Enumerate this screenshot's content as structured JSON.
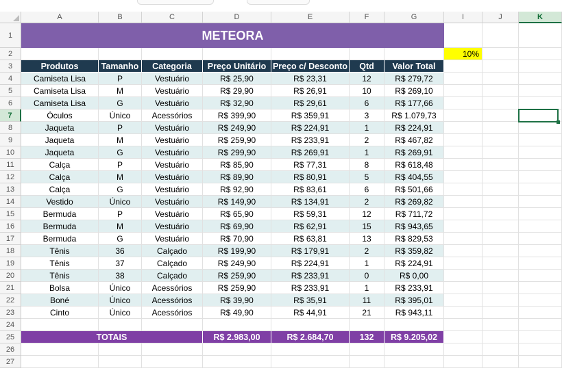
{
  "sheet": {
    "columns": [
      "A",
      "B",
      "C",
      "D",
      "E",
      "F",
      "G",
      "I",
      "J",
      "K"
    ],
    "selected_column": "K",
    "selected_row": "7",
    "title": "METEORA",
    "discount": "10%",
    "headers": [
      "Produtos",
      "Tamanho",
      "Categoria",
      "Preço Unitário",
      "Preço c/ Desconto",
      "Qtd",
      "Valor Total"
    ],
    "rows": [
      [
        "Camiseta Lisa",
        "P",
        "Vestuário",
        "R$ 25,90",
        "R$ 23,31",
        "12",
        "R$ 279,72"
      ],
      [
        "Camiseta Lisa",
        "M",
        "Vestuário",
        "R$ 29,90",
        "R$ 26,91",
        "10",
        "R$ 269,10"
      ],
      [
        "Camiseta Lisa",
        "G",
        "Vestuário",
        "R$ 32,90",
        "R$ 29,61",
        "6",
        "R$ 177,66"
      ],
      [
        "Óculos",
        "Único",
        "Acessórios",
        "R$ 399,90",
        "R$ 359,91",
        "3",
        "R$ 1.079,73"
      ],
      [
        "Jaqueta",
        "P",
        "Vestuário",
        "R$ 249,90",
        "R$ 224,91",
        "1",
        "R$ 224,91"
      ],
      [
        "Jaqueta",
        "M",
        "Vestuário",
        "R$ 259,90",
        "R$ 233,91",
        "2",
        "R$ 467,82"
      ],
      [
        "Jaqueta",
        "G",
        "Vestuário",
        "R$ 299,90",
        "R$ 269,91",
        "1",
        "R$ 269,91"
      ],
      [
        "Calça",
        "P",
        "Vestuário",
        "R$ 85,90",
        "R$ 77,31",
        "8",
        "R$ 618,48"
      ],
      [
        "Calça",
        "M",
        "Vestuário",
        "R$ 89,90",
        "R$ 80,91",
        "5",
        "R$ 404,55"
      ],
      [
        "Calça",
        "G",
        "Vestuário",
        "R$ 92,90",
        "R$ 83,61",
        "6",
        "R$ 501,66"
      ],
      [
        "Vestido",
        "Único",
        "Vestuário",
        "R$ 149,90",
        "R$ 134,91",
        "2",
        "R$ 269,82"
      ],
      [
        "Bermuda",
        "P",
        "Vestuário",
        "R$ 65,90",
        "R$ 59,31",
        "12",
        "R$ 711,72"
      ],
      [
        "Bermuda",
        "M",
        "Vestuário",
        "R$ 69,90",
        "R$ 62,91",
        "15",
        "R$ 943,65"
      ],
      [
        "Bermuda",
        "G",
        "Vestuário",
        "R$ 70,90",
        "R$ 63,81",
        "13",
        "R$ 829,53"
      ],
      [
        "Tênis",
        "36",
        "Calçado",
        "R$ 199,90",
        "R$ 179,91",
        "2",
        "R$ 359,82"
      ],
      [
        "Tênis",
        "37",
        "Calçado",
        "R$ 249,90",
        "R$ 224,91",
        "1",
        "R$ 224,91"
      ],
      [
        "Tênis",
        "38",
        "Calçado",
        "R$ 259,90",
        "R$ 233,91",
        "0",
        "R$ 0,00"
      ],
      [
        "Bolsa",
        "Único",
        "Acessórios",
        "R$ 259,90",
        "R$ 233,91",
        "1",
        "R$ 233,91"
      ],
      [
        "Boné",
        "Único",
        "Acessórios",
        "R$ 39,90",
        "R$ 35,91",
        "11",
        "R$ 395,01"
      ],
      [
        "Cinto",
        "Único",
        "Acessórios",
        "R$ 49,90",
        "R$ 44,91",
        "21",
        "R$ 943,11"
      ]
    ],
    "totals": {
      "label": "TOTAIS",
      "preco_unitario": "R$ 2.983,00",
      "preco_desconto": "R$ 2.684,70",
      "qtd": "132",
      "valor_total": "R$ 9.205,02"
    },
    "colors": {
      "title_bg": "#7f5faa",
      "header_bg": "#1f3a4f",
      "band_bg": "#e1eff0",
      "totals_bg": "#7f3fa5",
      "discount_bg": "#ffff00",
      "selection": "#1e7145"
    }
  }
}
